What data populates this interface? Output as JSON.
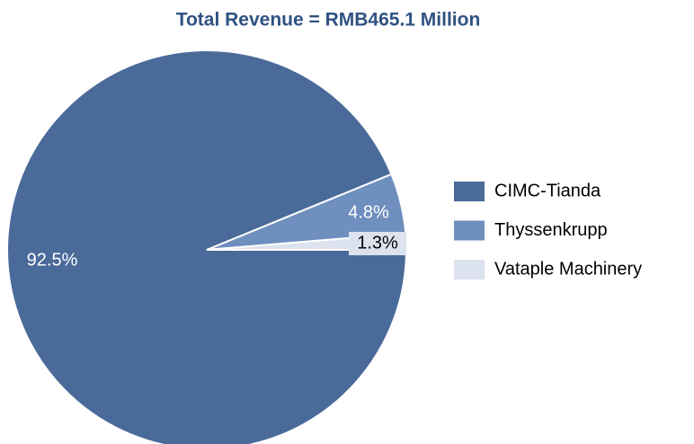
{
  "chart_data": {
    "type": "pie",
    "title": "Total Revenue = RMB465.1 Million",
    "categories": [
      "CIMC-Tianda",
      "Thyssenkrupp",
      "Vataple Machinery"
    ],
    "values": [
      92.5,
      4.8,
      1.3
    ],
    "value_labels": [
      "92.5%",
      "4.8%",
      "1.3%"
    ],
    "colors": [
      "#4a6a9a",
      "#6f8fbf",
      "#dce3ee"
    ],
    "legend": "right"
  }
}
